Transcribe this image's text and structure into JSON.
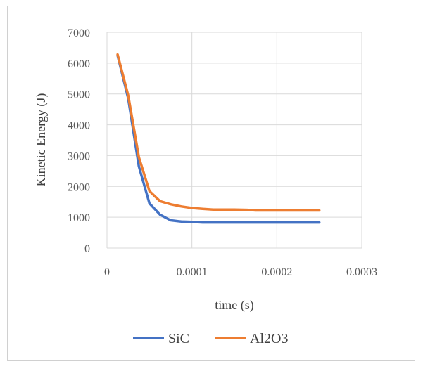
{
  "chart_data": {
    "type": "line",
    "title": "",
    "xlabel": "time (s)",
    "ylabel": "Kinetic Energy (J)",
    "xlim": [
      0,
      0.0003
    ],
    "ylim": [
      0,
      7000
    ],
    "xticks": [
      0,
      0.0001,
      0.0002,
      0.0003
    ],
    "xtick_labels": [
      "0",
      "0.0001",
      "0.0002",
      "0.0003"
    ],
    "yticks": [
      0,
      1000,
      2000,
      3000,
      4000,
      5000,
      6000,
      7000
    ],
    "ytick_labels": [
      "0",
      "1000",
      "2000",
      "3000",
      "4000",
      "5000",
      "6000",
      "7000"
    ],
    "grid": true,
    "legend_position": "bottom",
    "series": [
      {
        "name": "SiC",
        "color": "#4472C4",
        "x": [
          1.25e-05,
          2.5e-05,
          3.75e-05,
          5e-05,
          6.25e-05,
          7.5e-05,
          8.75e-05,
          0.0001,
          0.0001125,
          0.000125,
          0.00015,
          0.000175,
          0.0002,
          0.000225,
          0.00025
        ],
        "y": [
          6250,
          4850,
          2650,
          1450,
          1080,
          900,
          860,
          850,
          830,
          830,
          830,
          830,
          830,
          830,
          830
        ]
      },
      {
        "name": "Al2O3",
        "color": "#ED7D31",
        "x": [
          1.25e-05,
          2.5e-05,
          3.75e-05,
          5e-05,
          6.25e-05,
          7.5e-05,
          8.75e-05,
          0.0001,
          0.0001125,
          0.000125,
          0.00015,
          0.000165,
          0.000175,
          0.0002,
          0.000225,
          0.00025
        ],
        "y": [
          6280,
          4950,
          2950,
          1850,
          1520,
          1420,
          1350,
          1300,
          1270,
          1250,
          1250,
          1240,
          1220,
          1220,
          1220,
          1220
        ]
      }
    ]
  }
}
